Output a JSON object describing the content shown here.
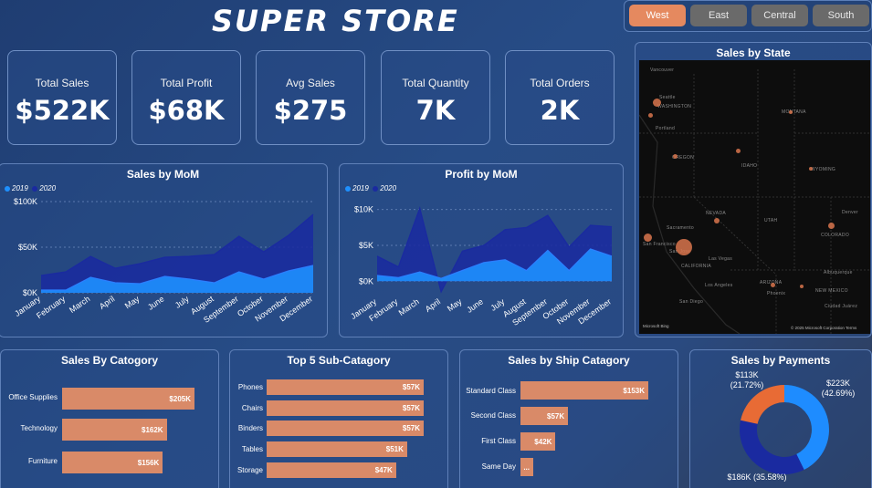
{
  "header": {
    "title": "SUPER STORE"
  },
  "regions": [
    {
      "label": "West",
      "active": true
    },
    {
      "label": "East",
      "active": false
    },
    {
      "label": "Central",
      "active": false
    },
    {
      "label": "South",
      "active": false
    }
  ],
  "kpis": [
    {
      "label": "Total Sales",
      "value": "$522K"
    },
    {
      "label": "Total Profit",
      "value": "$68K"
    },
    {
      "label": "Avg Sales",
      "value": "$275"
    },
    {
      "label": "Total Quantity",
      "value": "7K"
    },
    {
      "label": "Total Orders",
      "value": "2K"
    }
  ],
  "colors": {
    "y2019": "#1e90ff",
    "y2020": "#1a2aa0",
    "bar": "#d98a68",
    "accent": "#e5895f"
  },
  "sales_mom": {
    "title": "Sales by MoM",
    "legend": [
      "2019",
      "2020"
    ],
    "y_ticks": [
      "$100K",
      "$50K",
      "$0K"
    ]
  },
  "profit_mom": {
    "title": "Profit by MoM",
    "legend": [
      "2019",
      "2020"
    ],
    "y_ticks": [
      "$10K",
      "$5K",
      "$0K"
    ]
  },
  "chart_data": [
    {
      "type": "area",
      "title": "Sales by MoM",
      "categories": [
        "January",
        "February",
        "March",
        "April",
        "May",
        "June",
        "July",
        "August",
        "September",
        "October",
        "November",
        "December"
      ],
      "ylim": [
        0,
        100000
      ],
      "series": [
        {
          "name": "2019",
          "values": [
            3000,
            3000,
            17000,
            11000,
            10000,
            18000,
            15000,
            11000,
            23000,
            15000,
            24000,
            30000
          ]
        },
        {
          "name": "2020",
          "values": [
            19000,
            23000,
            40000,
            27000,
            32000,
            39000,
            40000,
            42000,
            62000,
            45000,
            63000,
            86000
          ]
        }
      ]
    },
    {
      "type": "area",
      "title": "Profit by MoM",
      "categories": [
        "January",
        "February",
        "March",
        "April",
        "May",
        "June",
        "July",
        "August",
        "September",
        "October",
        "November",
        "December"
      ],
      "ylim": [
        -2000,
        12000
      ],
      "series": [
        {
          "name": "2019",
          "values": [
            800,
            500,
            1300,
            400,
            1500,
            2600,
            3000,
            1500,
            4300,
            1500,
            4500,
            3500
          ]
        },
        {
          "name": "2020",
          "values": [
            3500,
            2000,
            10200,
            -1500,
            4200,
            5000,
            7200,
            7500,
            9200,
            4800,
            7800,
            7600
          ]
        }
      ]
    },
    {
      "type": "bar",
      "title": "Sales By Catogory",
      "categories": [
        "Office Supplies",
        "Technology",
        "Furniture"
      ],
      "values": [
        205,
        162,
        156
      ],
      "labels": [
        "$205K",
        "$162K",
        "$156K"
      ]
    },
    {
      "type": "bar",
      "title": "Top 5 Sub-Catagory",
      "categories": [
        "Phones",
        "Chairs",
        "Binders",
        "Tables",
        "Storage"
      ],
      "values": [
        57,
        57,
        57,
        51,
        47
      ],
      "labels": [
        "$57K",
        "$57K",
        "$57K",
        "$51K",
        "$47K"
      ]
    },
    {
      "type": "bar",
      "title": "Sales by Ship Catagory",
      "categories": [
        "Standard Class",
        "Second Class",
        "First Class",
        "Same Day"
      ],
      "values": [
        153,
        57,
        42,
        9
      ],
      "labels": [
        "$153K",
        "$57K",
        "$42K",
        "..."
      ]
    },
    {
      "type": "pie",
      "title": "Sales by Payments",
      "values": [
        223,
        186,
        113
      ],
      "slice_labels": [
        "$223K (42.69%)",
        "$186K (35.58%)",
        "$113K (21.72%)"
      ],
      "colors": [
        "#1e8cff",
        "#1a2aa0",
        "#e86b35"
      ]
    }
  ],
  "map": {
    "title": "Sales by State",
    "labels": [
      "Vancouver",
      "WASHINGTON",
      "Portland",
      "OREGON",
      "MONTANA",
      "IDAHO",
      "WYOMING",
      "NEVADA",
      "UTAH",
      "Denver",
      "COLORADO",
      "Sacramento",
      "San Francisco",
      "San Jose",
      "CALIFORNIA",
      "Las Vegas",
      "Los Angeles",
      "San Diego",
      "ARIZONA",
      "Phoenix",
      "Albuquerque",
      "NEW MEXICO",
      "Ciudad Juárez",
      "Seattle"
    ],
    "attribution": "© 2025 Microsoft Corporation  Terms",
    "bing": "Microsoft Bing"
  },
  "payments": {
    "title": "Sales by Payments"
  }
}
